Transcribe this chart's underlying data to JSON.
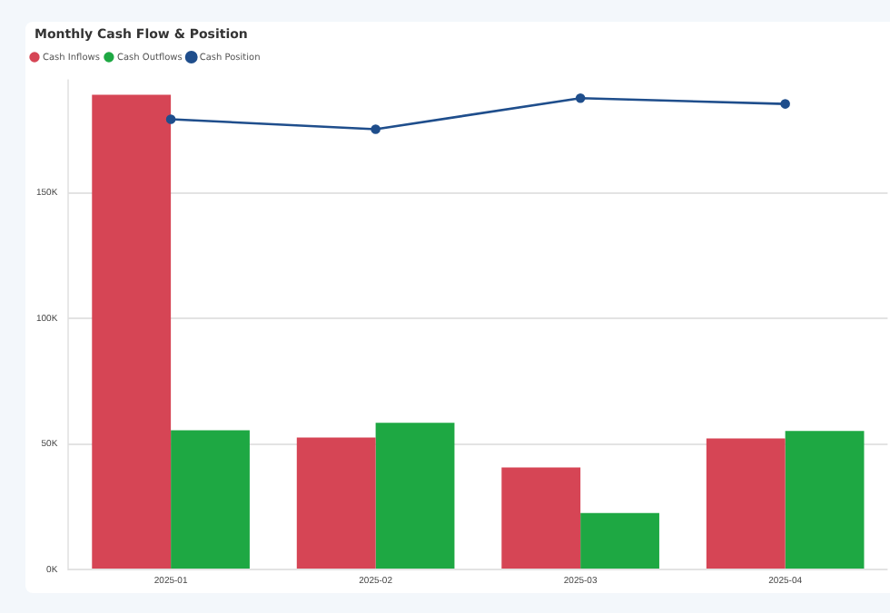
{
  "chart_data": {
    "type": "bar",
    "title": "Monthly Cash Flow & Position",
    "categories": [
      "2025-01",
      "2025-02",
      "2025-03",
      "2025-04"
    ],
    "series": [
      {
        "name": "Cash Inflows",
        "color": "#d64555",
        "values": [
          189000,
          52500,
          40600,
          52200
        ]
      },
      {
        "name": "Cash Outflows",
        "color": "#1ea843",
        "values": [
          55400,
          58400,
          22500,
          55200
        ]
      },
      {
        "name": "Cash Position",
        "type": "line",
        "color": "#1f4e8c",
        "values": [
          179300,
          175300,
          187700,
          185400
        ]
      }
    ],
    "ylim": [
      0,
      195000
    ],
    "yticks": [
      {
        "value": 0,
        "label": "0K"
      },
      {
        "value": 50000,
        "label": "50K"
      },
      {
        "value": 100000,
        "label": "100K"
      },
      {
        "value": 150000,
        "label": "150K"
      }
    ],
    "grid": "y",
    "legend": "top left",
    "marker": "circle"
  }
}
